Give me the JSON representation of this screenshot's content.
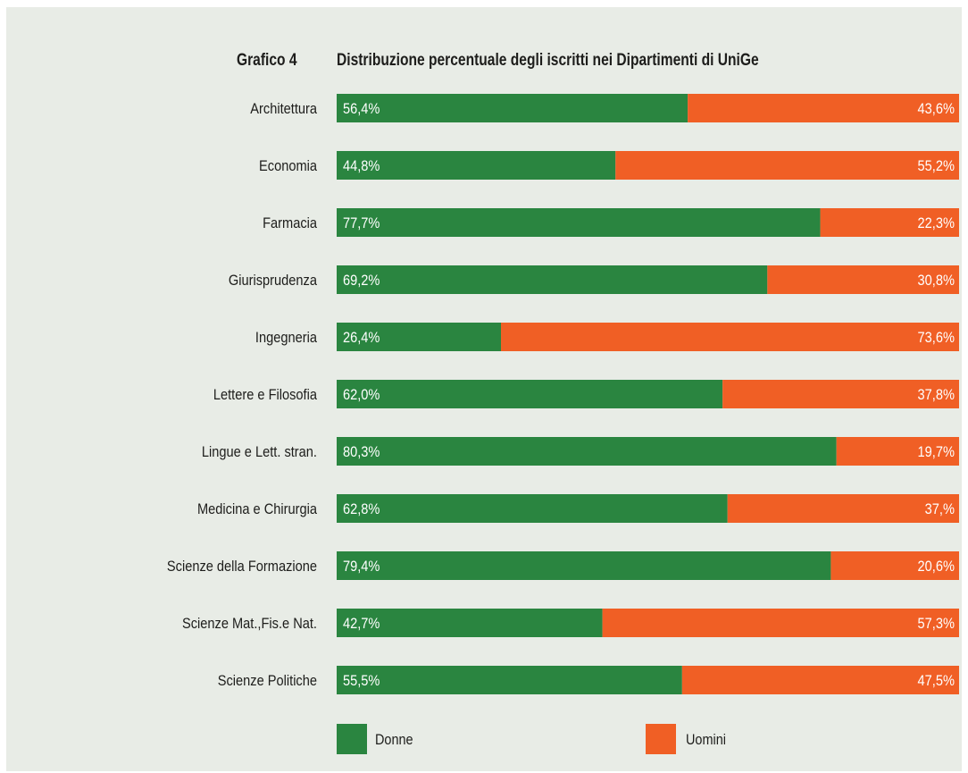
{
  "chart_data": {
    "type": "bar",
    "stacked": true,
    "orientation": "horizontal",
    "title_label": "Grafico 4",
    "title": "Distribuzione percentuale degli iscritti nei Dipartimenti di UniGe",
    "categories": [
      "Architettura",
      "Economia",
      "Farmacia",
      "Giurisprudenza",
      "Ingegneria",
      "Lettere e Filosofia",
      "Lingue e Lett. stran.",
      "Medicina e Chirurgia",
      "Scienze della Formazione",
      "Scienze Mat.,Fis.e Nat.",
      "Scienze Politiche"
    ],
    "series": [
      {
        "name": "Donne",
        "color": "#2a8540",
        "values": [
          56.4,
          44.8,
          77.7,
          69.2,
          26.4,
          62.0,
          80.3,
          62.8,
          79.4,
          42.7,
          55.5
        ],
        "labels": [
          "56,4%",
          "44,8%",
          "77,7%",
          "69,2%",
          "26,4%",
          "62,0%",
          "80,3%",
          "62,8%",
          "79,4%",
          "42,7%",
          "55,5%"
        ]
      },
      {
        "name": "Uomini",
        "color": "#f05f25",
        "values": [
          43.6,
          55.2,
          22.3,
          30.8,
          73.6,
          37.8,
          19.7,
          37.0,
          20.6,
          57.3,
          47.5
        ],
        "labels": [
          "43,6%",
          "55,2%",
          "22,3%",
          "30,8%",
          "73,6%",
          "37,8%",
          "19,7%",
          "37,%",
          "20,6%",
          "57,3%",
          "47,5%"
        ]
      }
    ],
    "xlim": [
      0,
      100
    ],
    "grid": false,
    "legend": "bottom"
  }
}
